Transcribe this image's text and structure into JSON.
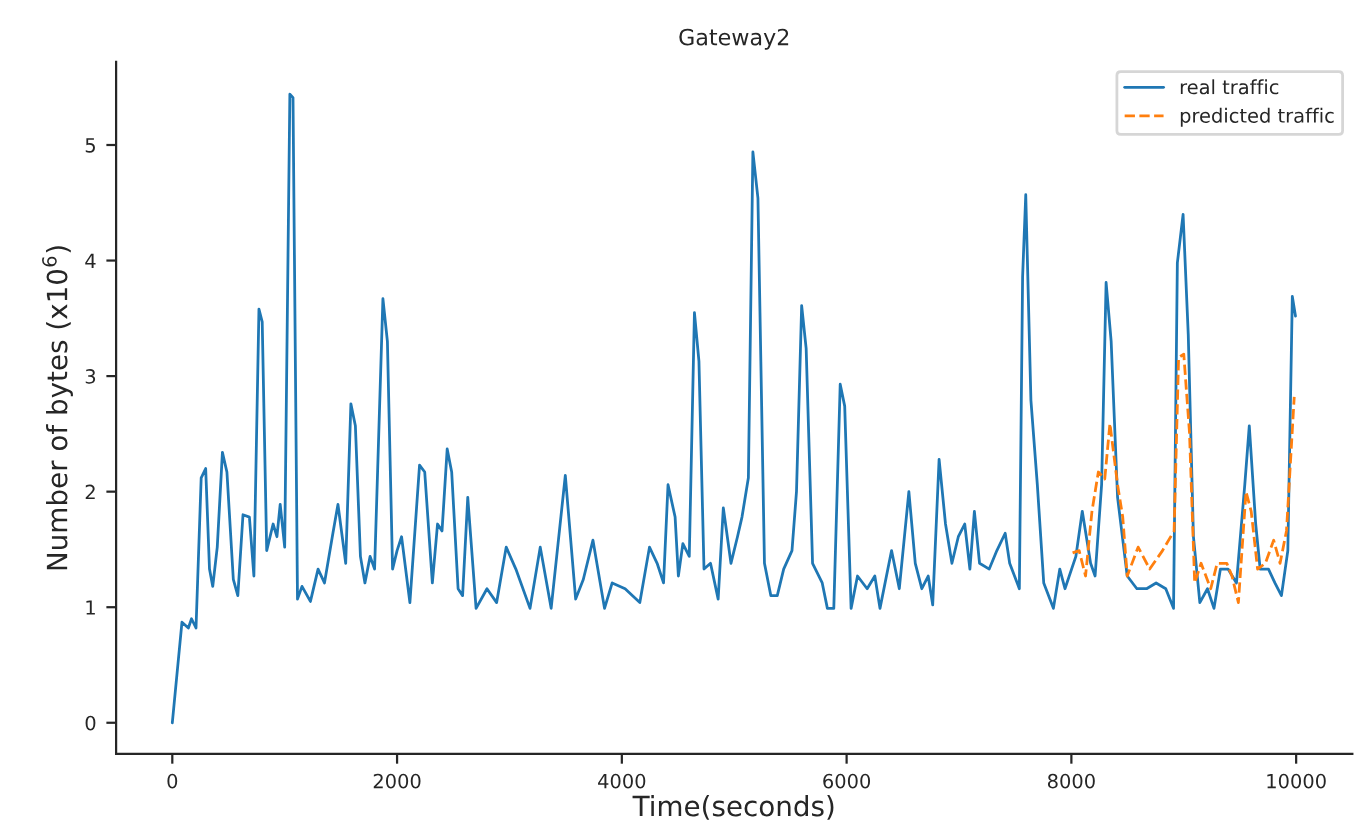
{
  "chart_data": {
    "type": "line",
    "title": "Gateway2",
    "xlabel": "Time(seconds)",
    "ylabel": "Number of bytes (x10$^{6}$)",
    "xlim": [
      -500,
      10500
    ],
    "ylim": [
      -0.27,
      5.72
    ],
    "xticks": [
      0,
      2000,
      4000,
      6000,
      8000,
      10000
    ],
    "yticks": [
      0,
      1,
      2,
      3,
      4,
      5
    ],
    "grid": false,
    "legend": "top right",
    "series": [
      {
        "name": "real traffic",
        "color": "#1f77b4",
        "line_style": "solid",
        "x": [
          0,
          86,
          143,
          171,
          211,
          257,
          297,
          331,
          360,
          400,
          446,
          486,
          543,
          583,
          629,
          686,
          726,
          771,
          800,
          840,
          897,
          931,
          960,
          1000,
          1046,
          1074,
          1114,
          1154,
          1229,
          1297,
          1354,
          1429,
          1474,
          1543,
          1589,
          1629,
          1674,
          1714,
          1760,
          1800,
          1874,
          1914,
          1960,
          2000,
          2040,
          2114,
          2200,
          2246,
          2314,
          2360,
          2400,
          2446,
          2486,
          2543,
          2583,
          2629,
          2703,
          2800,
          2886,
          2971,
          3057,
          3183,
          3274,
          3371,
          3497,
          3589,
          3657,
          3743,
          3846,
          3914,
          4029,
          4160,
          4246,
          4314,
          4371,
          4411,
          4474,
          4503,
          4543,
          4600,
          4646,
          4686,
          4731,
          4789,
          4857,
          4903,
          4971,
          5029,
          5069,
          5126,
          5166,
          5211,
          5269,
          5326,
          5383,
          5440,
          5514,
          5554,
          5600,
          5640,
          5697,
          5783,
          5829,
          5886,
          5943,
          5983,
          6040,
          6097,
          6183,
          6251,
          6297,
          6400,
          6469,
          6554,
          6611,
          6669,
          6726,
          6766,
          6823,
          6880,
          6937,
          6994,
          7051,
          7097,
          7137,
          7183,
          7269,
          7337,
          7411,
          7451,
          7537,
          7566,
          7594,
          7640,
          7697,
          7754,
          7840,
          7897,
          7943,
          8040,
          8097,
          8171,
          8211,
          8269,
          8309,
          8354,
          8411,
          8497,
          8583,
          8669,
          8754,
          8840,
          8909,
          8943,
          8994,
          9040,
          9086,
          9143,
          9211,
          9269,
          9326,
          9394,
          9469,
          9543,
          9583,
          9640,
          9680,
          9754,
          9811,
          9869,
          9926,
          9966,
          9994
        ],
        "values": [
          0,
          0.87,
          0.82,
          0.9,
          0.82,
          2.12,
          2.2,
          1.33,
          1.18,
          1.52,
          2.34,
          2.17,
          1.24,
          1.1,
          1.8,
          1.78,
          1.27,
          3.58,
          3.47,
          1.49,
          1.72,
          1.61,
          1.89,
          1.52,
          5.44,
          5.41,
          1.07,
          1.18,
          1.05,
          1.33,
          1.21,
          1.64,
          1.89,
          1.38,
          2.76,
          2.57,
          1.44,
          1.21,
          1.44,
          1.33,
          3.67,
          3.3,
          1.33,
          1.49,
          1.61,
          1.04,
          2.23,
          2.17,
          1.21,
          1.72,
          1.66,
          2.37,
          2.17,
          1.16,
          1.1,
          1.95,
          0.99,
          1.16,
          1.04,
          1.52,
          1.33,
          0.99,
          1.52,
          0.99,
          2.14,
          1.07,
          1.24,
          1.58,
          0.99,
          1.21,
          1.16,
          1.04,
          1.52,
          1.38,
          1.21,
          2.06,
          1.78,
          1.27,
          1.55,
          1.44,
          3.55,
          3.13,
          1.33,
          1.38,
          1.07,
          1.86,
          1.38,
          1.61,
          1.78,
          2.12,
          4.94,
          4.54,
          1.38,
          1.1,
          1.1,
          1.33,
          1.49,
          2.0,
          3.61,
          3.24,
          1.38,
          1.21,
          0.99,
          0.99,
          2.93,
          2.74,
          0.99,
          1.27,
          1.16,
          1.27,
          0.99,
          1.49,
          1.16,
          2.0,
          1.38,
          1.16,
          1.27,
          1.02,
          2.28,
          1.72,
          1.38,
          1.61,
          1.72,
          1.33,
          1.83,
          1.38,
          1.33,
          1.49,
          1.64,
          1.38,
          1.16,
          3.86,
          4.57,
          2.79,
          2.06,
          1.21,
          0.99,
          1.33,
          1.16,
          1.44,
          1.83,
          1.38,
          1.27,
          2.06,
          3.81,
          3.3,
          1.95,
          1.27,
          1.16,
          1.16,
          1.21,
          1.16,
          0.99,
          3.98,
          4.4,
          3.36,
          1.61,
          1.04,
          1.16,
          0.99,
          1.33,
          1.33,
          1.21,
          2.06,
          2.57,
          1.72,
          1.33,
          1.33,
          1.21,
          1.1,
          1.49,
          3.69,
          3.52
        ]
      },
      {
        "name": "predicted traffic",
        "color": "#ff7f0e",
        "line_style": "dashed",
        "x": [
          8011,
          8069,
          8126,
          8183,
          8240,
          8297,
          8343,
          8411,
          8457,
          8497,
          8594,
          8697,
          8811,
          8914,
          8954,
          9000,
          9051,
          9097,
          9154,
          9240,
          9297,
          9383,
          9429,
          9486,
          9554,
          9600,
          9657,
          9726,
          9800,
          9857,
          9914,
          9983
        ],
        "values": [
          1.47,
          1.49,
          1.27,
          1.83,
          2.17,
          2.11,
          2.59,
          2.06,
          1.78,
          1.27,
          1.52,
          1.33,
          1.49,
          1.66,
          3.16,
          3.19,
          2.51,
          1.21,
          1.38,
          1.16,
          1.38,
          1.38,
          1.27,
          1.04,
          2.0,
          1.83,
          1.33,
          1.38,
          1.58,
          1.38,
          1.66,
          2.82
        ]
      }
    ]
  }
}
